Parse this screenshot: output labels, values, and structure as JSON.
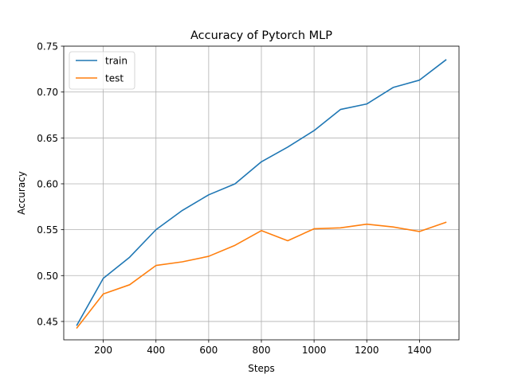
{
  "chart_data": {
    "type": "line",
    "title": "Accuracy of Pytorch MLP",
    "xlabel": "Steps",
    "ylabel": "Accuracy",
    "xlim": [
      50,
      1550
    ],
    "ylim": [
      0.43,
      0.75
    ],
    "xticks": [
      200,
      400,
      600,
      800,
      1000,
      1200,
      1400
    ],
    "yticks": [
      0.45,
      0.5,
      0.55,
      0.6,
      0.65,
      0.7,
      0.75
    ],
    "ytick_labels": [
      "0.45",
      "0.50",
      "0.55",
      "0.60",
      "0.65",
      "0.70",
      "0.75"
    ],
    "grid": true,
    "legend_position": "upper left",
    "x": [
      100,
      200,
      300,
      400,
      500,
      600,
      700,
      800,
      900,
      1000,
      1100,
      1200,
      1300,
      1400,
      1500
    ],
    "series": [
      {
        "name": "train",
        "color": "#1f77b4",
        "values": [
          0.446,
          0.497,
          0.52,
          0.55,
          0.571,
          0.588,
          0.6,
          0.624,
          0.64,
          0.658,
          0.681,
          0.687,
          0.705,
          0.713,
          0.735
        ]
      },
      {
        "name": "test",
        "color": "#ff7f0e",
        "values": [
          0.443,
          0.48,
          0.49,
          0.511,
          0.515,
          0.521,
          0.533,
          0.549,
          0.538,
          0.551,
          0.552,
          0.556,
          0.553,
          0.548,
          0.558
        ]
      }
    ]
  }
}
